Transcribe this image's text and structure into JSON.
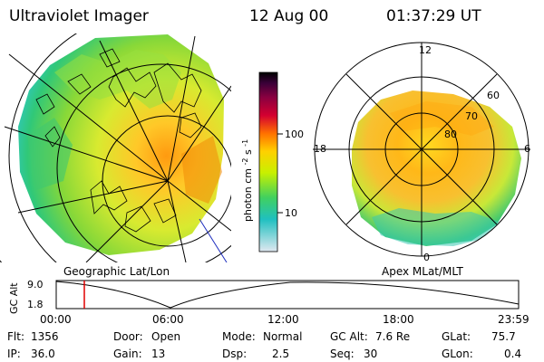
{
  "header": {
    "instrument": "Ultraviolet Imager",
    "date": "12 Aug 00",
    "time": "01:37:29 UT"
  },
  "geo_panel": {
    "label": "Geographic Lat/Lon"
  },
  "mag_panel": {
    "label": "Apex MLat/MLT",
    "mlt_labels": [
      "12",
      "18",
      "6",
      "0"
    ],
    "mlat_labels": [
      "60",
      "70",
      "80"
    ]
  },
  "colorbar": {
    "unit_label": "photon cm",
    "unit_exp1": "-2",
    "unit_s": "s",
    "unit_exp2": "-1",
    "ticks": [
      "100",
      "10"
    ],
    "colors": [
      "#000000",
      "#3a0038",
      "#8a0040",
      "#d40030",
      "#ff7000",
      "#ffd000",
      "#c8f000",
      "#40d060",
      "#20c0c0",
      "#e0e8f0"
    ]
  },
  "altitude_plot": {
    "ylabel": "GC Alt",
    "y_ticks": [
      "9.0",
      "1.8"
    ],
    "x_ticks": [
      "00:00",
      "06:00",
      "12:00",
      "18:00",
      "23:59"
    ],
    "marker_color": "#e00000"
  },
  "footer": {
    "flt_label": "Flt:",
    "flt_value": "1356",
    "ip_label": "IP:",
    "ip_value": "36.0",
    "door_label": "Door:",
    "door_value": "Open",
    "gain_label": "Gain:",
    "gain_value": "13",
    "mode_label": "Mode:",
    "mode_value": "Normal",
    "dsp_label": "Dsp:",
    "dsp_value": "2.5",
    "gcalt_label": "GC Alt:",
    "gcalt_value": "7.6 Re",
    "seq_label": "Seq:",
    "seq_value": "30",
    "glat_label": "GLat:",
    "glat_value": "75.7",
    "glon_label": "GLon:",
    "glon_value": "0.4"
  }
}
